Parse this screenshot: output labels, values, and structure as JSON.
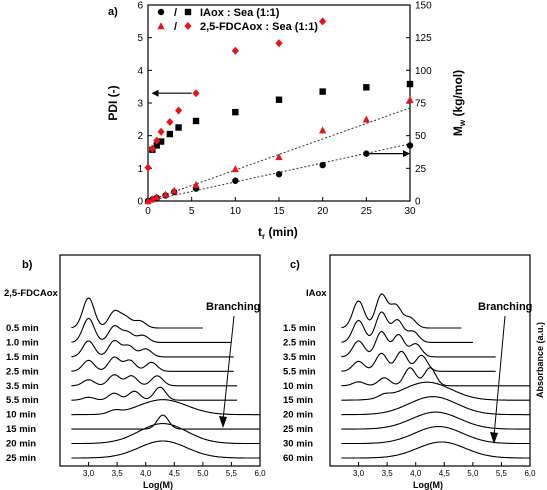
{
  "chart_data": [
    {
      "panel": "a)",
      "type": "scatter",
      "xlabel": "t",
      "xlabel_sub": "r",
      "xlabel_unit": " (min)",
      "ylabel_left": "PDI (-)",
      "ylabel_right_main": "M",
      "ylabel_right_sub": "w",
      "ylabel_right_unit": " (kg/mol)",
      "xlim": [
        0,
        30
      ],
      "ylim_left": [
        0,
        6
      ],
      "ylim_right": [
        0,
        150
      ],
      "xticks": [
        "0",
        "5",
        "10",
        "15",
        "20",
        "25",
        "30"
      ],
      "yticks_left": [
        "0",
        "1",
        "2",
        "3",
        "4",
        "5",
        "6"
      ],
      "yticks_right": [
        "0",
        "25",
        "50",
        "75",
        "100",
        "125",
        "150"
      ],
      "legend": [
        {
          "mark_a": "circle",
          "mark_b": "square",
          "slash": "/",
          "text": "IAox : Sea (1:1)",
          "color": "#000000"
        },
        {
          "mark_a": "triangle",
          "mark_b": "diamond",
          "slash": "/",
          "text": "2,5-FDCAox : Sea (1:1)",
          "color": "#e8141b"
        }
      ],
      "series": [
        {
          "marker": "circle",
          "color": "#000000",
          "axis": "left",
          "x": [
            0,
            0.5,
            1,
            2,
            3,
            5.5,
            10,
            15,
            20,
            25,
            30
          ],
          "y": [
            0.0,
            0.05,
            0.1,
            0.17,
            0.28,
            0.38,
            0.62,
            0.82,
            1.1,
            1.45,
            1.7
          ]
        },
        {
          "marker": "triangle",
          "color": "#e8141b",
          "axis": "left",
          "x": [
            0,
            0.5,
            1,
            2,
            3,
            5.5,
            10,
            15,
            20,
            25,
            30
          ],
          "y": [
            0.0,
            0.06,
            0.12,
            0.2,
            0.32,
            0.5,
            0.98,
            1.35,
            2.17,
            2.5,
            3.1
          ]
        },
        {
          "marker": "square",
          "color": "#000000",
          "axis": "left",
          "x": [
            0.5,
            1,
            1.5,
            2.5,
            3.5,
            5.5,
            10,
            15,
            20,
            25,
            30
          ],
          "y": [
            1.57,
            1.7,
            1.82,
            2.05,
            2.25,
            2.45,
            2.72,
            3.1,
            3.35,
            3.48,
            3.58
          ]
        },
        {
          "marker": "diamond",
          "color": "#e8141b",
          "axis": "left",
          "x": [
            0,
            0.5,
            1,
            1.5,
            2.5,
            3.5,
            5.5,
            10,
            15,
            20
          ],
          "y": [
            1.02,
            1.6,
            1.85,
            2.12,
            2.42,
            2.77,
            3.3,
            4.6,
            4.83,
            5.5
          ]
        }
      ],
      "trendlines": [
        {
          "x": [
            0,
            30
          ],
          "y": [
            0,
            1.75
          ]
        },
        {
          "x": [
            0,
            30
          ],
          "y": [
            0,
            2.85
          ]
        }
      ],
      "arrows": [
        {
          "from_x": 5,
          "to_x": 0.4,
          "y": 3.3
        },
        {
          "from_x": 25,
          "to_x": 30,
          "y": 1.45
        }
      ]
    },
    {
      "panel": "b)",
      "type": "line",
      "xlabel": "Log(M)",
      "xlim": [
        2.5,
        6.0
      ],
      "xticks": [
        "3,0",
        "3,5",
        "4,0",
        "4,5",
        "5,0",
        "5,5",
        "6,0"
      ],
      "header": "2,5-FDCAox",
      "annotation": "Branching",
      "traces": [
        {
          "label": "0.5 min",
          "peaks": [
            [
              3.0,
              30
            ],
            [
              3.45,
              16
            ],
            [
              3.65,
              10
            ],
            [
              3.9,
              7
            ]
          ],
          "tail": 5.0
        },
        {
          "label": "1.0 min",
          "peaks": [
            [
              3.0,
              24
            ],
            [
              3.45,
              16
            ],
            [
              3.68,
              10
            ],
            [
              3.95,
              7
            ]
          ],
          "tail": 5.5
        },
        {
          "label": "1.5 min",
          "peaks": [
            [
              3.0,
              16
            ],
            [
              3.45,
              16
            ],
            [
              3.7,
              11
            ],
            [
              4.0,
              8
            ]
          ],
          "tail": 5.55
        },
        {
          "label": "2.5 min",
          "peaks": [
            [
              3.0,
              11
            ],
            [
              3.45,
              14
            ],
            [
              3.72,
              11
            ],
            [
              4.1,
              9
            ]
          ],
          "tail": 5.55
        },
        {
          "label": "3.5 min",
          "peaks": [
            [
              3.0,
              6
            ],
            [
              3.45,
              11
            ],
            [
              3.75,
              10
            ],
            [
              4.2,
              10
            ]
          ],
          "tail": 5.6
        },
        {
          "label": "5.5 min",
          "peaks": [
            [
              3.0,
              3
            ],
            [
              3.45,
              7
            ],
            [
              3.8,
              9
            ],
            [
              4.25,
              13
            ]
          ],
          "tail": 5.6
        },
        {
          "label": "10 min",
          "peaks": [
            [
              3.45,
              3
            ],
            [
              4.3,
              15
            ]
          ],
          "tail": 6.0
        },
        {
          "label": "15 min",
          "peaks": [
            [
              4.3,
              14
            ]
          ],
          "tail": 6.0
        },
        {
          "label": "20 min",
          "peaks": [
            [
              4.3,
              20
            ]
          ],
          "tail": 6.0
        },
        {
          "label": "25 min",
          "peaks": [
            [
              4.3,
              17
            ]
          ],
          "tail": 6.0
        }
      ]
    },
    {
      "panel": "c)",
      "type": "line",
      "xlabel": "Log(M)",
      "ylabel": "Absorbance (a.u.)",
      "xlim": [
        2.5,
        6.0
      ],
      "xticks": [
        "3,0",
        "3,5",
        "4,0",
        "4,5",
        "5,0",
        "5,5",
        "6,0"
      ],
      "header": "IAox",
      "annotation": "Branching",
      "traces": [
        {
          "label": "1.5 min",
          "peaks": [
            [
              3.0,
              27
            ],
            [
              3.4,
              33
            ],
            [
              3.65,
              22
            ],
            [
              3.9,
              10
            ]
          ],
          "tail": 4.8
        },
        {
          "label": "2.5 min",
          "peaks": [
            [
              3.0,
              22
            ],
            [
              3.4,
              30
            ],
            [
              3.68,
              22
            ],
            [
              3.95,
              11
            ]
          ],
          "tail": 5.0
        },
        {
          "label": "3.5 min",
          "peaks": [
            [
              3.0,
              16
            ],
            [
              3.4,
              25
            ],
            [
              3.7,
              22
            ],
            [
              4.0,
              13
            ]
          ],
          "tail": 5.4
        },
        {
          "label": "5.5 min",
          "peaks": [
            [
              3.0,
              10
            ],
            [
              3.4,
              18
            ],
            [
              3.75,
              20
            ],
            [
              4.1,
              16
            ]
          ],
          "tail": 5.4
        },
        {
          "label": "10 min",
          "peaks": [
            [
              3.0,
              4
            ],
            [
              3.45,
              8
            ],
            [
              3.9,
              18
            ],
            [
              4.25,
              18
            ]
          ],
          "tail": 6.0
        },
        {
          "label": "15 min",
          "peaks": [
            [
              3.45,
              3
            ],
            [
              4.2,
              18
            ]
          ],
          "tail": 6.0
        },
        {
          "label": "20 min",
          "peaks": [
            [
              4.3,
              18
            ]
          ],
          "tail": 6.0
        },
        {
          "label": "25 min",
          "peaks": [
            [
              4.35,
              17
            ]
          ],
          "tail": 6.0
        },
        {
          "label": "30 min",
          "peaks": [
            [
              4.4,
              17
            ]
          ],
          "tail": 6.0
        },
        {
          "label": "60 min",
          "peaks": [
            [
              4.45,
              16
            ]
          ],
          "tail": 6.0
        }
      ]
    }
  ]
}
